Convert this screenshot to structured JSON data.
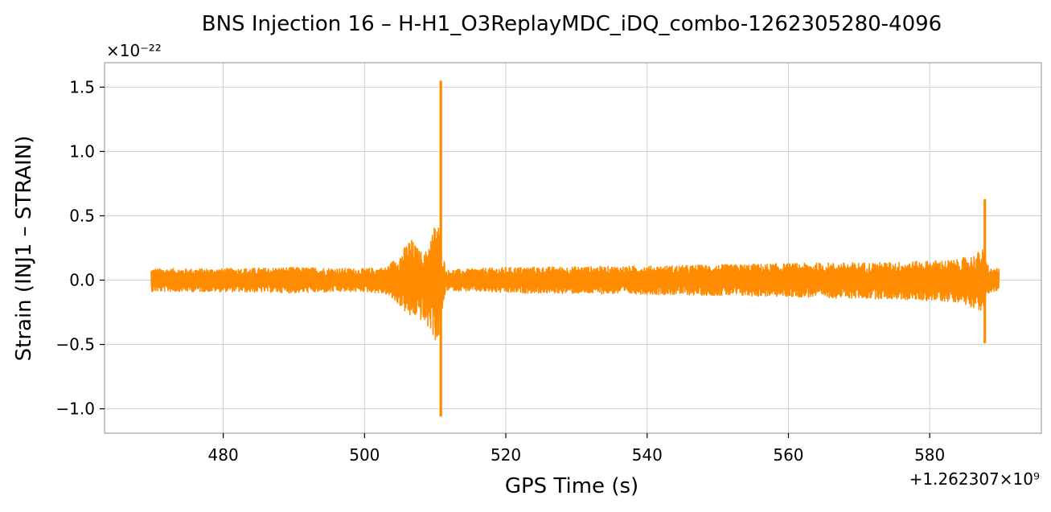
{
  "chart_data": {
    "type": "line",
    "title": "BNS Injection 16 – H-H1_O3ReplayMDC_iDQ_combo-1262305280-4096",
    "xlabel": "GPS Time (s)",
    "ylabel": "Strain (INJ1 – STRAIN)",
    "y_scale_label": "×10⁻²²",
    "x_offset_label": "+1.262307×10⁹",
    "xlim": [
      463.2,
      595.8
    ],
    "ylim": [
      -1.19,
      1.69
    ],
    "grid": true,
    "x_ticks": [
      480,
      500,
      520,
      540,
      560,
      580
    ],
    "x_tick_labels": [
      "480",
      "500",
      "520",
      "540",
      "560",
      "580"
    ],
    "y_ticks": [
      -1.0,
      -0.5,
      0.0,
      0.5,
      1.0,
      1.5
    ],
    "y_tick_labels": [
      "−1.0",
      "−0.5",
      "0.0",
      "0.5",
      "1.0",
      "1.5"
    ],
    "series": [
      {
        "color": "#ff8c00",
        "x_range": [
          469.8,
          589.8
        ],
        "envelope": [
          {
            "x": 469.8,
            "upper": 0.09,
            "lower": -0.09
          },
          {
            "x": 480.0,
            "upper": 0.09,
            "lower": -0.09
          },
          {
            "x": 490.0,
            "upper": 0.1,
            "lower": -0.1
          },
          {
            "x": 500.0,
            "upper": 0.09,
            "lower": -0.09
          },
          {
            "x": 503.0,
            "upper": 0.1,
            "lower": -0.11
          },
          {
            "x": 505.0,
            "upper": 0.2,
            "lower": -0.2
          },
          {
            "x": 506.5,
            "upper": 0.33,
            "lower": -0.3
          },
          {
            "x": 507.5,
            "upper": 0.25,
            "lower": -0.28
          },
          {
            "x": 508.5,
            "upper": 0.2,
            "lower": -0.35
          },
          {
            "x": 509.5,
            "upper": 0.36,
            "lower": -0.4
          },
          {
            "x": 510.3,
            "upper": 0.5,
            "lower": -0.52
          },
          {
            "x": 511.5,
            "upper": 0.08,
            "lower": -0.08
          },
          {
            "x": 520.0,
            "upper": 0.1,
            "lower": -0.1
          },
          {
            "x": 540.0,
            "upper": 0.11,
            "lower": -0.11
          },
          {
            "x": 560.0,
            "upper": 0.13,
            "lower": -0.13
          },
          {
            "x": 575.0,
            "upper": 0.14,
            "lower": -0.15
          },
          {
            "x": 584.0,
            "upper": 0.16,
            "lower": -0.17
          },
          {
            "x": 586.5,
            "upper": 0.2,
            "lower": -0.22
          },
          {
            "x": 587.4,
            "upper": 0.25,
            "lower": -0.25
          },
          {
            "x": 588.5,
            "upper": 0.09,
            "lower": -0.09
          },
          {
            "x": 589.8,
            "upper": 0.09,
            "lower": -0.09
          }
        ],
        "spikes": [
          {
            "x": 510.8,
            "max": 1.55,
            "min": -1.06
          },
          {
            "x": 587.8,
            "max": 0.63,
            "min": -0.49
          }
        ]
      }
    ]
  }
}
